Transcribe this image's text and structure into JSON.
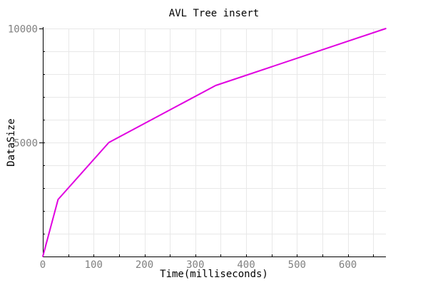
{
  "chart_data": {
    "type": "line",
    "title": "AVL Tree insert",
    "xlabel": "Time(milliseconds)",
    "ylabel": "DataSize",
    "xlim": [
      0,
      675
    ],
    "ylim": [
      0,
      10000
    ],
    "x_ticks": [
      0,
      100,
      200,
      300,
      400,
      500,
      600
    ],
    "x_tick_labels": [
      "0",
      "100",
      "200",
      "300",
      "400",
      "500",
      "600"
    ],
    "y_ticks": [
      5000,
      10000
    ],
    "y_tick_labels": [
      "5000",
      "10000"
    ],
    "grid": true,
    "series": [
      {
        "color": "#e000e0",
        "x": [
          0,
          30,
          130,
          340,
          675
        ],
        "y": [
          0,
          2500,
          5000,
          7500,
          10000
        ]
      }
    ]
  }
}
